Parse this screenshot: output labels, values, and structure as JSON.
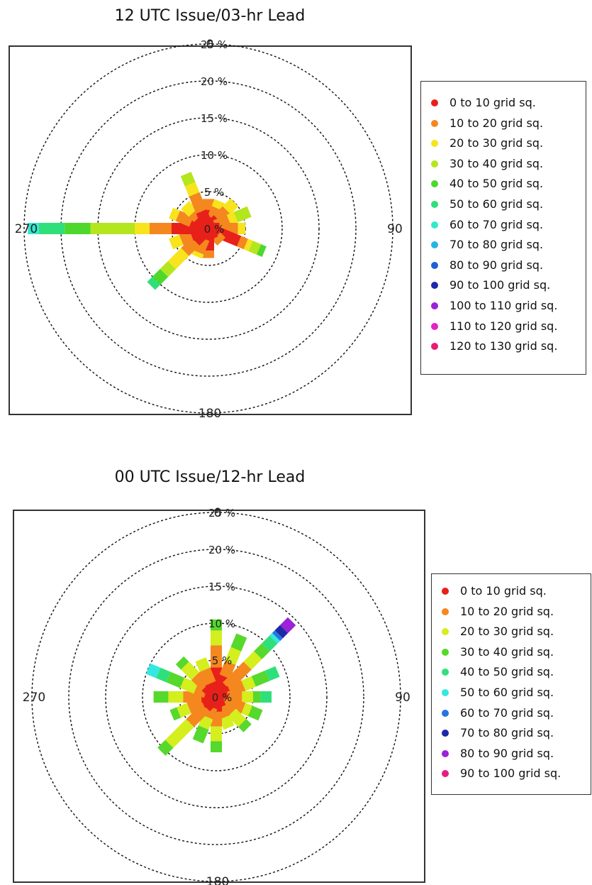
{
  "chart_data": [
    {
      "type": "windrose",
      "title": "12 UTC Issue/03-hr Lead",
      "angle_labels": [
        "0",
        "90",
        "180",
        "270"
      ],
      "radial_ticks": [
        "0 %",
        "5 %",
        "10 %",
        "15 %",
        "20 %",
        "25 %"
      ],
      "rlim": [
        0,
        25
      ],
      "grid": true,
      "legend_position": "right",
      "bins": [
        {
          "label": "0 to 10 grid sq.",
          "color": "#e8201a"
        },
        {
          "label": "10 to 20 grid sq.",
          "color": "#f5871f"
        },
        {
          "label": "20 to 30 grid sq.",
          "color": "#f7e41c"
        },
        {
          "label": "30 to 40 grid sq.",
          "color": "#b4e61e"
        },
        {
          "label": "40 to 50 grid sq.",
          "color": "#4ed82c"
        },
        {
          "label": "50 to 60 grid sq.",
          "color": "#2fe07a"
        },
        {
          "label": "60 to 70 grid sq.",
          "color": "#33e8cf"
        },
        {
          "label": "70 to 80 grid sq.",
          "color": "#25b6e6"
        },
        {
          "label": "80 to 90 grid sq.",
          "color": "#1f5fd6"
        },
        {
          "label": "90 to 100 grid sq.",
          "color": "#1d2aa6"
        },
        {
          "label": "100 to 110 grid sq.",
          "color": "#9b22d6"
        },
        {
          "label": "110 to 120 grid sq.",
          "color": "#e322c8"
        },
        {
          "label": "120 to 130 grid sq.",
          "color": "#e81c70"
        }
      ],
      "directions": [
        {
          "angle": 0,
          "segments": [
            2.5,
            1.5
          ]
        },
        {
          "angle": 22.5,
          "segments": [
            1.5,
            1.5,
            1.0
          ]
        },
        {
          "angle": 45,
          "segments": [
            1.8,
            1.7,
            1.5
          ]
        },
        {
          "angle": 67.5,
          "segments": [
            1.0,
            2.0,
            1.0,
            2.0
          ]
        },
        {
          "angle": 90,
          "segments": [
            1.5,
            2.5,
            1.0
          ]
        },
        {
          "angle": 112.5,
          "segments": [
            4.5,
            1.0,
            0.7,
            1.2,
            0.8
          ]
        },
        {
          "angle": 135,
          "segments": [
            1.5,
            1.0
          ]
        },
        {
          "angle": 157.5,
          "segments": [
            1.5
          ]
        },
        {
          "angle": 180,
          "segments": [
            3.0,
            1.0
          ]
        },
        {
          "angle": 202.5,
          "segments": [
            1.5,
            2.0,
            0.6
          ]
        },
        {
          "angle": 225,
          "segments": [
            2.5,
            2.0,
            2.5,
            1.5,
            1.5,
            1.0
          ]
        },
        {
          "angle": 247.5,
          "segments": [
            2.5,
            1.5,
            1.5
          ]
        },
        {
          "angle": 270,
          "segments": [
            5.0,
            3.0,
            2.0,
            6.0,
            3.5,
            3.5,
            1.5
          ]
        },
        {
          "angle": 292.5,
          "segments": [
            2.5,
            2.0,
            1.0
          ]
        },
        {
          "angle": 315,
          "segments": [
            2.0,
            1.0,
            1.5
          ]
        },
        {
          "angle": 337.5,
          "segments": [
            2.5,
            2.5,
            1.5,
            1.5
          ]
        }
      ]
    },
    {
      "type": "windrose",
      "title": "00 UTC Issue/12-hr Lead",
      "angle_labels": [
        "0",
        "90",
        "180",
        "270"
      ],
      "radial_ticks": [
        "0 %",
        "5 %",
        "10 %",
        "15 %",
        "20 %",
        "25 %"
      ],
      "rlim": [
        0,
        25
      ],
      "grid": true,
      "legend_position": "right",
      "bins": [
        {
          "label": "0 to 10 grid sq.",
          "color": "#e8201a"
        },
        {
          "label": "10 to 20 grid sq.",
          "color": "#f5871f"
        },
        {
          "label": "20 to 30 grid sq.",
          "color": "#d4ee1e"
        },
        {
          "label": "30 to 40 grid sq.",
          "color": "#56d82c"
        },
        {
          "label": "40 to 50 grid sq.",
          "color": "#2fe07a"
        },
        {
          "label": "50 to 60 grid sq.",
          "color": "#33e8e0"
        },
        {
          "label": "60 to 70 grid sq.",
          "color": "#2574e0"
        },
        {
          "label": "70 to 80 grid sq.",
          "color": "#1d2aa6"
        },
        {
          "label": "80 to 90 grid sq.",
          "color": "#9b22d6"
        },
        {
          "label": "90 to 100 grid sq.",
          "color": "#e81c80"
        }
      ],
      "directions": [
        {
          "angle": 0,
          "segments": [
            4.0,
            3.0,
            2.0,
            1.5
          ]
        },
        {
          "angle": 22.5,
          "segments": [
            3.0,
            2.0,
            2.0,
            2.0
          ]
        },
        {
          "angle": 45,
          "segments": [
            2.0,
            4.0,
            2.0,
            1.5,
            1.5,
            0.5,
            0.5,
            1.0,
            1.5
          ]
        },
        {
          "angle": 67.5,
          "segments": [
            2.0,
            2.0,
            1.5,
            2.0,
            1.5
          ]
        },
        {
          "angle": 90,
          "segments": [
            1.5,
            2.0,
            1.5,
            1.0,
            1.5
          ]
        },
        {
          "angle": 112.5,
          "segments": [
            1.5,
            2.5,
            1.0,
            1.5
          ]
        },
        {
          "angle": 135,
          "segments": [
            1.0,
            2.0,
            2.0,
            1.0
          ]
        },
        {
          "angle": 157.5,
          "segments": [
            1.5,
            1.5,
            1.5
          ]
        },
        {
          "angle": 180,
          "segments": [
            2.0,
            2.0,
            2.0,
            1.5
          ]
        },
        {
          "angle": 202.5,
          "segments": [
            1.5,
            1.5,
            1.5,
            2.0
          ]
        },
        {
          "angle": 225,
          "segments": [
            2.0,
            3.0,
            4.0,
            1.5
          ]
        },
        {
          "angle": 247.5,
          "segments": [
            2.0,
            2.0,
            1.5,
            1.0
          ]
        },
        {
          "angle": 270,
          "segments": [
            2.0,
            2.5,
            2.0,
            2.0
          ]
        },
        {
          "angle": 292.5,
          "segments": [
            1.5,
            1.5,
            2.0,
            2.0,
            1.5,
            1.5
          ]
        },
        {
          "angle": 315,
          "segments": [
            2.0,
            2.0,
            2.0,
            1.0
          ]
        },
        {
          "angle": 337.5,
          "segments": [
            2.0,
            2.0,
            1.5
          ]
        }
      ]
    }
  ]
}
